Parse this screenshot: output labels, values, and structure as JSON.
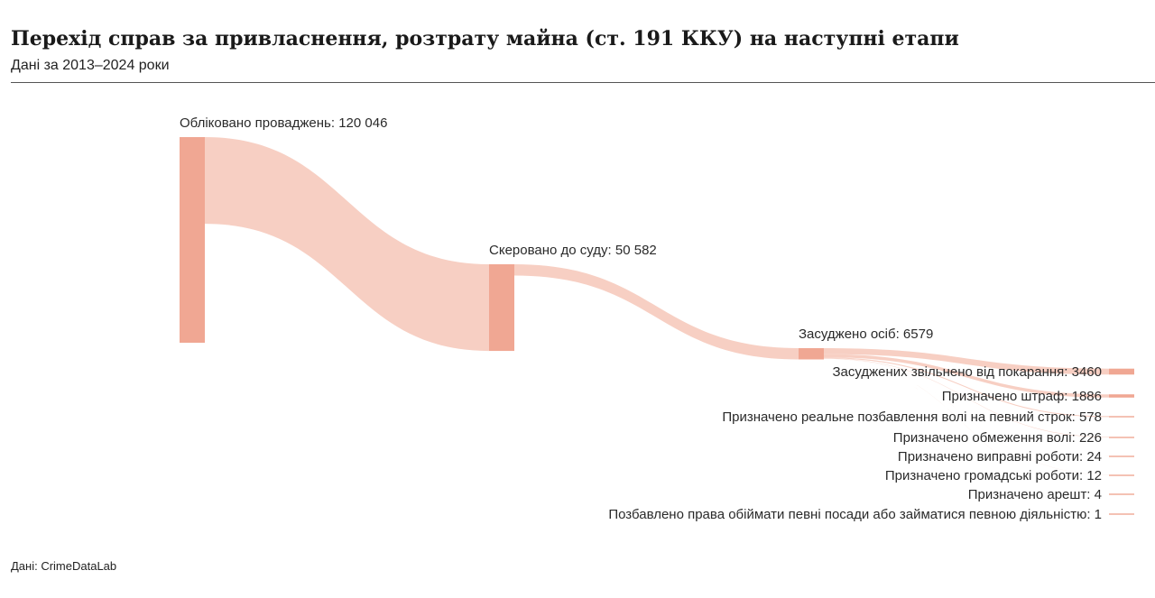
{
  "header": {
    "title": "Перехід справ за привласнення, розтрату майна (ст. 191 ККУ) на наступні етапи",
    "subtitle": "Дані за 2013–2024 роки"
  },
  "footer": {
    "source": "Дані: CrimeDataLab"
  },
  "colors": {
    "node": "#f0a793",
    "link": "#f7cfc3",
    "text": "#2a2a2a"
  },
  "chart_data": {
    "type": "sankey",
    "stages": [
      {
        "id": "registered",
        "label": "Обліковано проваджень: 120 046",
        "value": 120046
      },
      {
        "id": "court",
        "label": "Скеровано до суду: 50 582",
        "value": 50582
      },
      {
        "id": "convicted",
        "label": "Засуджено осіб: 6579",
        "value": 6579
      }
    ],
    "outcomes": [
      {
        "label": "Засуджених звільнено від покарання: 3460",
        "value": 3460
      },
      {
        "label": "Призначено штраф: 1886",
        "value": 1886
      },
      {
        "label": "Призначено реальне позбавлення волі на певний строк: 578",
        "value": 578
      },
      {
        "label": "Призначено обмеження волі: 226",
        "value": 226
      },
      {
        "label": "Призначено виправні роботи: 24",
        "value": 24
      },
      {
        "label": "Призначено громадські роботи: 12",
        "value": 12
      },
      {
        "label": "Призначено арешт: 4",
        "value": 4
      },
      {
        "label": "Позбавлено права обіймати певні посади або займатися певною діяльністю: 1",
        "value": 1
      }
    ]
  }
}
